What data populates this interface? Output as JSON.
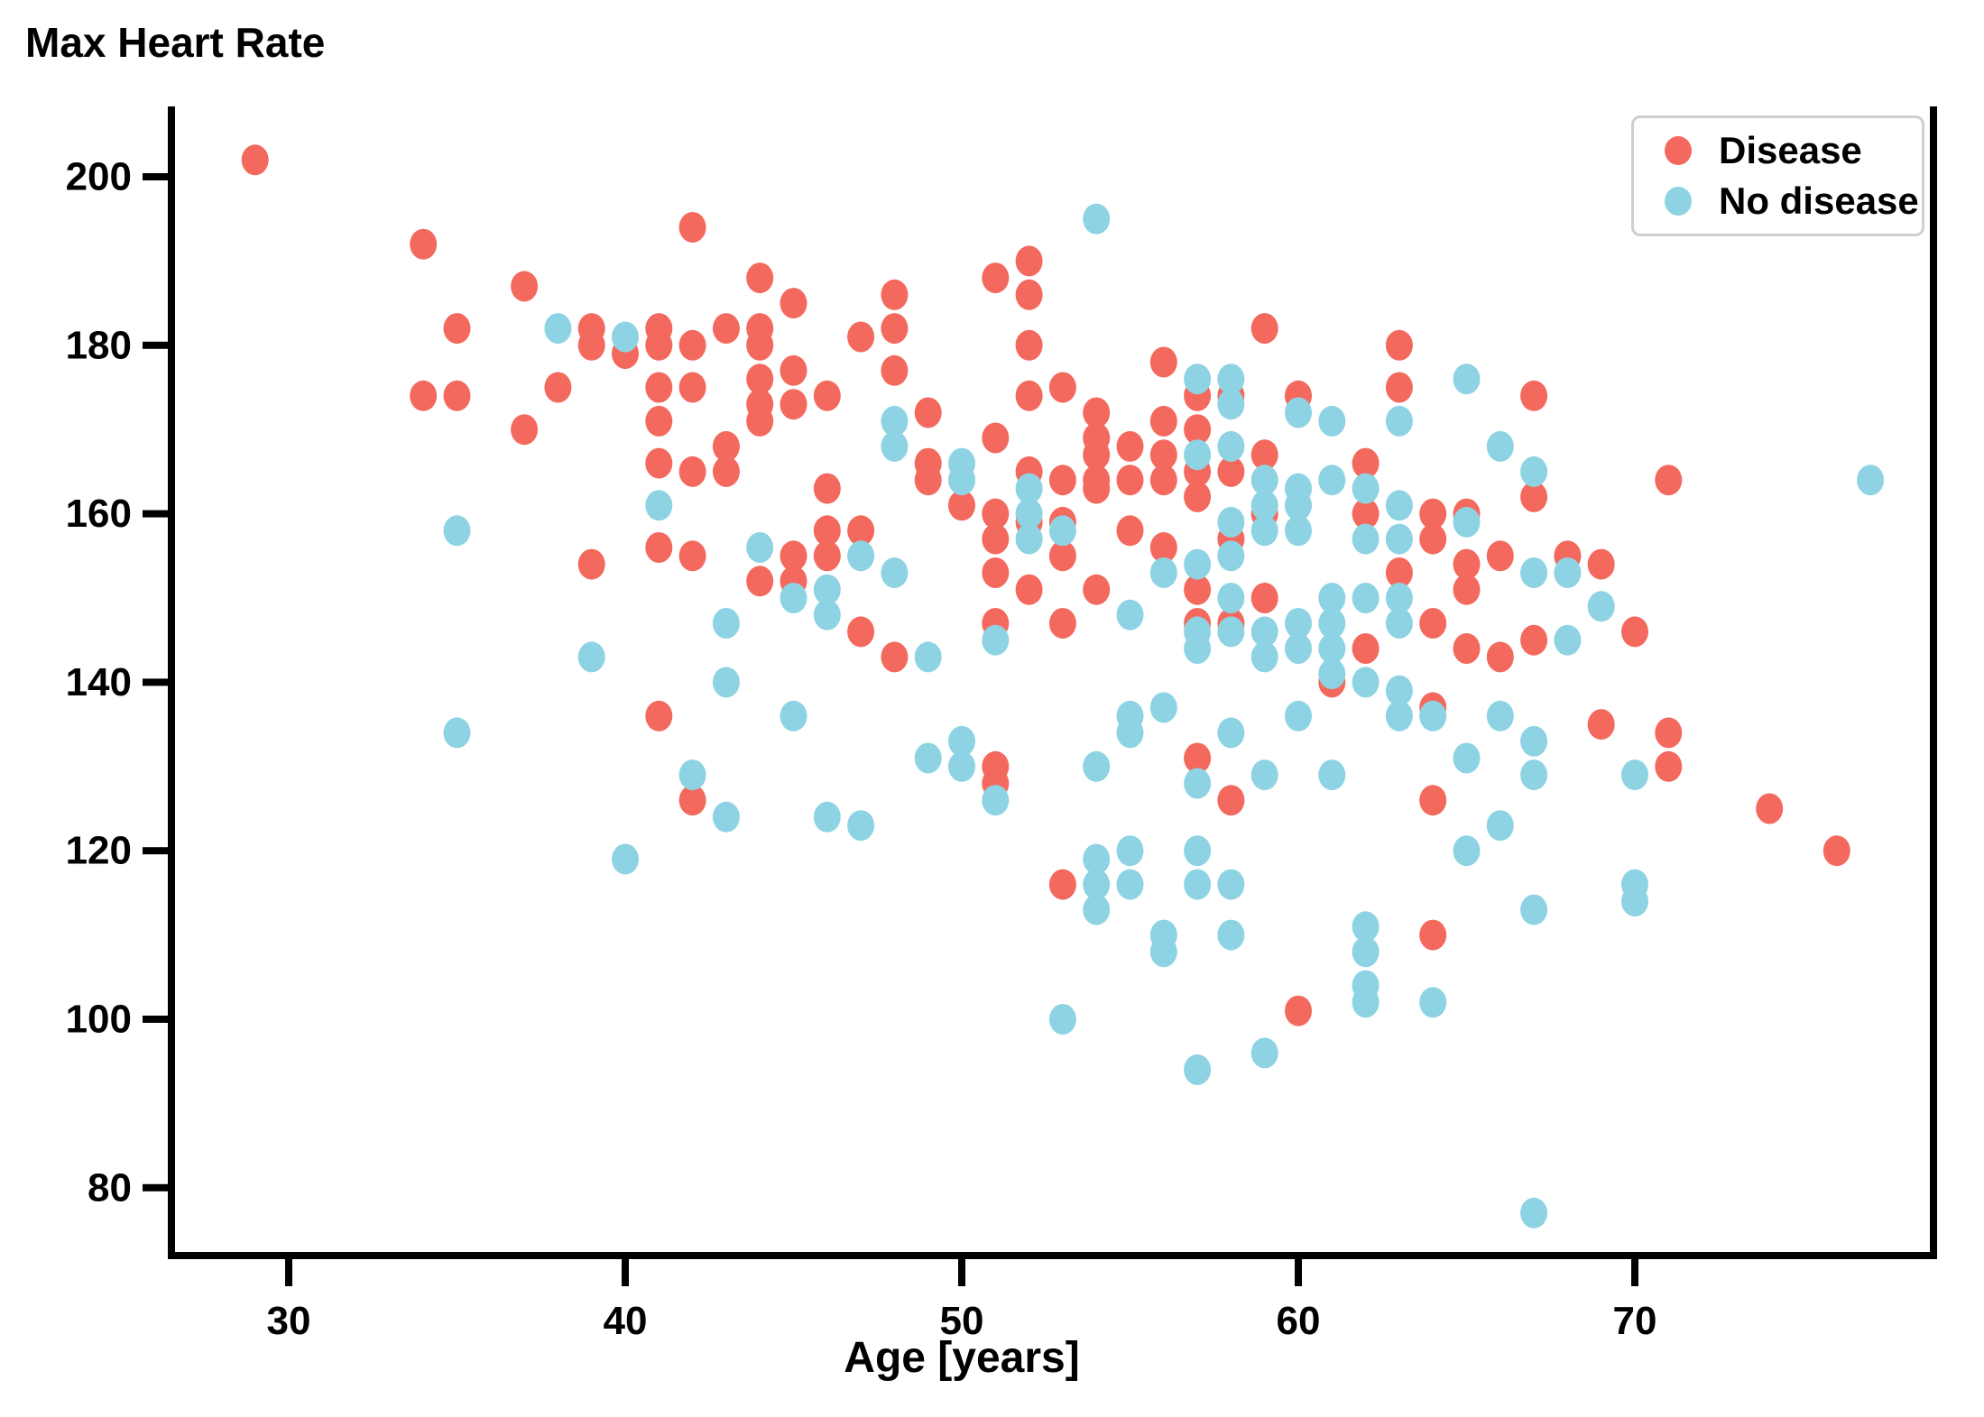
{
  "chart_data": {
    "type": "scatter",
    "title": "Max Heart Rate",
    "xlabel": "Age [years]",
    "ylabel": "",
    "x_ticks": [
      30,
      40,
      50,
      60,
      70
    ],
    "y_ticks": [
      200,
      180,
      160,
      140,
      120,
      100,
      80
    ],
    "xlim": [
      26.5,
      78.9
    ],
    "ylim": [
      71.5,
      207.5
    ],
    "grid": false,
    "legend_position": "top-right",
    "colors": {
      "disease": "#f4695e",
      "no_disease": "#8ed3e3",
      "axis": "#000000",
      "legend_border": "#cfcfcf"
    },
    "series": [
      {
        "name": "Disease",
        "color_key": "disease",
        "points": [
          [
            29,
            202
          ],
          [
            34,
            192
          ],
          [
            37,
            187
          ],
          [
            35,
            182
          ],
          [
            39,
            182
          ],
          [
            39,
            180
          ],
          [
            34,
            174
          ],
          [
            35,
            174
          ],
          [
            38,
            175
          ],
          [
            37,
            170
          ],
          [
            42,
            194
          ],
          [
            44,
            188
          ],
          [
            45,
            185
          ],
          [
            40,
            179
          ],
          [
            41,
            182
          ],
          [
            41,
            180
          ],
          [
            42,
            180
          ],
          [
            43,
            182
          ],
          [
            44,
            182
          ],
          [
            44,
            180
          ],
          [
            44,
            176
          ],
          [
            44,
            173
          ],
          [
            44,
            171
          ],
          [
            45,
            177
          ],
          [
            45,
            173
          ],
          [
            46,
            174
          ],
          [
            47,
            181
          ],
          [
            48,
            186
          ],
          [
            48,
            182
          ],
          [
            48,
            177
          ],
          [
            49,
            172
          ],
          [
            51,
            188
          ],
          [
            52,
            190
          ],
          [
            52,
            186
          ],
          [
            52,
            180
          ],
          [
            52,
            174
          ],
          [
            51,
            169
          ],
          [
            41,
            175
          ],
          [
            41,
            171
          ],
          [
            41,
            166
          ],
          [
            42,
            175
          ],
          [
            42,
            165
          ],
          [
            43,
            168
          ],
          [
            43,
            165
          ],
          [
            46,
            163
          ],
          [
            49,
            166
          ],
          [
            49,
            164
          ],
          [
            59,
            182
          ],
          [
            56,
            178
          ],
          [
            63,
            180
          ],
          [
            63,
            175
          ],
          [
            53,
            175
          ],
          [
            54,
            172
          ],
          [
            54,
            169
          ],
          [
            54,
            167
          ],
          [
            54,
            164
          ],
          [
            54,
            163
          ],
          [
            55,
            168
          ],
          [
            55,
            164
          ],
          [
            56,
            171
          ],
          [
            56,
            167
          ],
          [
            56,
            164
          ],
          [
            57,
            174
          ],
          [
            57,
            170
          ],
          [
            57,
            165
          ],
          [
            57,
            162
          ],
          [
            58,
            174
          ],
          [
            58,
            165
          ],
          [
            59,
            167
          ],
          [
            60,
            174
          ],
          [
            62,
            166
          ],
          [
            53,
            164
          ],
          [
            52,
            165
          ],
          [
            52,
            159
          ],
          [
            67,
            174
          ],
          [
            67,
            162
          ],
          [
            71,
            164
          ],
          [
            39,
            154
          ],
          [
            41,
            156
          ],
          [
            42,
            155
          ],
          [
            44,
            152
          ],
          [
            45,
            155
          ],
          [
            45,
            152
          ],
          [
            46,
            158
          ],
          [
            46,
            155
          ],
          [
            47,
            158
          ],
          [
            47,
            146
          ],
          [
            48,
            143
          ],
          [
            41,
            136
          ],
          [
            42,
            126
          ],
          [
            50,
            161
          ],
          [
            51,
            160
          ],
          [
            51,
            157
          ],
          [
            53,
            159
          ],
          [
            51,
            153
          ],
          [
            52,
            151
          ],
          [
            53,
            155
          ],
          [
            51,
            147
          ],
          [
            53,
            147
          ],
          [
            51,
            130
          ],
          [
            51,
            128
          ],
          [
            54,
            151
          ],
          [
            55,
            158
          ],
          [
            56,
            156
          ],
          [
            57,
            151
          ],
          [
            57,
            147
          ],
          [
            58,
            157
          ],
          [
            58,
            147
          ],
          [
            59,
            160
          ],
          [
            59,
            150
          ],
          [
            61,
            140
          ],
          [
            62,
            160
          ],
          [
            62,
            144
          ],
          [
            63,
            153
          ],
          [
            64,
            160
          ],
          [
            64,
            157
          ],
          [
            64,
            147
          ],
          [
            64,
            137
          ],
          [
            65,
            160
          ],
          [
            65,
            154
          ],
          [
            65,
            151
          ],
          [
            65,
            144
          ],
          [
            66,
            155
          ],
          [
            66,
            143
          ],
          [
            58,
            126
          ],
          [
            57,
            131
          ],
          [
            64,
            126
          ],
          [
            68,
            155
          ],
          [
            69,
            154
          ],
          [
            67,
            145
          ],
          [
            70,
            146
          ],
          [
            69,
            135
          ],
          [
            71,
            134
          ],
          [
            71,
            130
          ],
          [
            74,
            125
          ],
          [
            76,
            120
          ],
          [
            53,
            116
          ],
          [
            60,
            101
          ],
          [
            64,
            110
          ]
        ]
      },
      {
        "name": "No disease",
        "color_key": "no_disease",
        "points": [
          [
            38,
            182
          ],
          [
            40,
            181
          ],
          [
            48,
            171
          ],
          [
            48,
            168
          ],
          [
            50,
            166
          ],
          [
            50,
            164
          ],
          [
            54,
            195
          ],
          [
            63,
            171
          ],
          [
            65,
            176
          ],
          [
            66,
            168
          ],
          [
            57,
            176
          ],
          [
            57,
            167
          ],
          [
            58,
            176
          ],
          [
            58,
            173
          ],
          [
            58,
            168
          ],
          [
            59,
            164
          ],
          [
            60,
            172
          ],
          [
            60,
            163
          ],
          [
            61,
            171
          ],
          [
            61,
            164
          ],
          [
            62,
            163
          ],
          [
            52,
            163
          ],
          [
            52,
            157
          ],
          [
            67,
            165
          ],
          [
            77,
            164
          ],
          [
            35,
            158
          ],
          [
            39,
            143
          ],
          [
            35,
            134
          ],
          [
            41,
            161
          ],
          [
            44,
            156
          ],
          [
            45,
            150
          ],
          [
            46,
            151
          ],
          [
            46,
            148
          ],
          [
            47,
            155
          ],
          [
            48,
            153
          ],
          [
            49,
            143
          ],
          [
            43,
            147
          ],
          [
            43,
            140
          ],
          [
            45,
            136
          ],
          [
            42,
            129
          ],
          [
            43,
            124
          ],
          [
            46,
            124
          ],
          [
            47,
            123
          ],
          [
            49,
            131
          ],
          [
            50,
            133
          ],
          [
            50,
            130
          ],
          [
            40,
            119
          ],
          [
            52,
            160
          ],
          [
            51,
            145
          ],
          [
            51,
            126
          ],
          [
            53,
            158
          ],
          [
            55,
            148
          ],
          [
            56,
            153
          ],
          [
            57,
            154
          ],
          [
            57,
            146
          ],
          [
            57,
            144
          ],
          [
            58,
            159
          ],
          [
            58,
            155
          ],
          [
            58,
            150
          ],
          [
            58,
            146
          ],
          [
            59,
            161
          ],
          [
            59,
            158
          ],
          [
            59,
            146
          ],
          [
            59,
            143
          ],
          [
            60,
            161
          ],
          [
            60,
            158
          ],
          [
            60,
            147
          ],
          [
            60,
            144
          ],
          [
            61,
            150
          ],
          [
            61,
            147
          ],
          [
            61,
            144
          ],
          [
            61,
            141
          ],
          [
            62,
            157
          ],
          [
            62,
            150
          ],
          [
            62,
            140
          ],
          [
            63,
            161
          ],
          [
            63,
            157
          ],
          [
            63,
            150
          ],
          [
            63,
            147
          ],
          [
            63,
            139
          ],
          [
            63,
            136
          ],
          [
            64,
            136
          ],
          [
            65,
            159
          ],
          [
            66,
            136
          ],
          [
            55,
            136
          ],
          [
            55,
            134
          ],
          [
            56,
            137
          ],
          [
            54,
            130
          ],
          [
            57,
            128
          ],
          [
            58,
            134
          ],
          [
            59,
            129
          ],
          [
            60,
            136
          ],
          [
            61,
            129
          ],
          [
            65,
            131
          ],
          [
            54,
            119
          ],
          [
            54,
            116
          ],
          [
            54,
            113
          ],
          [
            55,
            120
          ],
          [
            55,
            116
          ],
          [
            57,
            120
          ],
          [
            57,
            116
          ],
          [
            58,
            116
          ],
          [
            56,
            110
          ],
          [
            56,
            108
          ],
          [
            58,
            110
          ],
          [
            65,
            120
          ],
          [
            66,
            123
          ],
          [
            67,
            153
          ],
          [
            68,
            153
          ],
          [
            69,
            149
          ],
          [
            68,
            145
          ],
          [
            67,
            133
          ],
          [
            67,
            129
          ],
          [
            70,
            129
          ],
          [
            53,
            100
          ],
          [
            62,
            111
          ],
          [
            62,
            108
          ],
          [
            62,
            104
          ],
          [
            62,
            102
          ],
          [
            64,
            102
          ],
          [
            57,
            94
          ],
          [
            59,
            96
          ],
          [
            67,
            77
          ],
          [
            67,
            113
          ],
          [
            70,
            116
          ],
          [
            70,
            114
          ]
        ]
      }
    ]
  }
}
